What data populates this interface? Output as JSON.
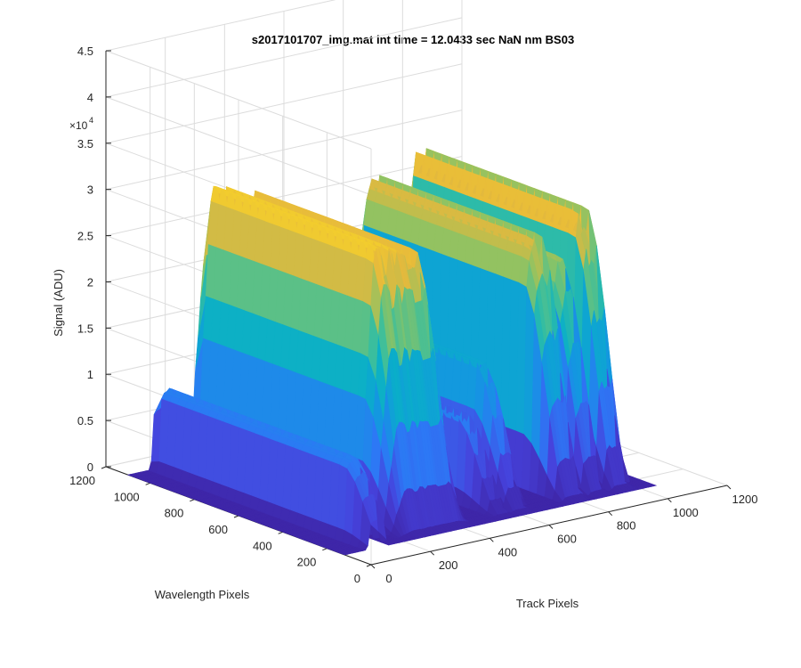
{
  "chart_data": {
    "type": "surface",
    "title": "s2017101707_img.mat int time = 12.0433 sec  NaN nm BS03",
    "xlabel": "Track Pixels",
    "ylabel": "Wavelength Pixels",
    "zlabel": "Signal (ADU)",
    "xlim": [
      0,
      1200
    ],
    "ylim": [
      0,
      1200
    ],
    "zlim": [
      0,
      45000
    ],
    "x_ticks": [
      "0",
      "200",
      "400",
      "600",
      "800",
      "1000",
      "1200"
    ],
    "y_ticks": [
      "0",
      "200",
      "400",
      "600",
      "800",
      "1000",
      "1200"
    ],
    "z_ticks": [
      "0",
      "0.5",
      "1",
      "1.5",
      "2",
      "2.5",
      "3",
      "3.5",
      "4",
      "4.5"
    ],
    "z_multiplier": "×10",
    "z_multiplier_exp": "4",
    "colormap": "parula",
    "grid": true,
    "peaks": [
      {
        "track_center": 110,
        "track_width": 70,
        "plateau_signal": 8500,
        "wavelength_range": [
          100,
          1100
        ]
      },
      {
        "track_center": 330,
        "track_width": 260,
        "plateau_signal": 28000,
        "wavelength_range": [
          200,
          1100
        ]
      },
      {
        "track_center": 560,
        "track_width": 60,
        "plateau_signal": 9000,
        "wavelength_range": [
          200,
          1100
        ]
      },
      {
        "track_center": 620,
        "track_width": 70,
        "plateau_signal": 14000,
        "wavelength_range": [
          200,
          1100
        ]
      },
      {
        "track_center": 800,
        "track_width": 90,
        "plateau_signal": 26000,
        "wavelength_range": [
          200,
          1100
        ]
      },
      {
        "track_center": 880,
        "track_width": 70,
        "plateau_signal": 23000,
        "wavelength_range": [
          200,
          1100
        ]
      },
      {
        "track_center": 960,
        "track_width": 80,
        "plateau_signal": 27000,
        "wavelength_range": [
          200,
          1100
        ]
      }
    ],
    "colors": {
      "low": "#3e26a8",
      "mid": "#10a0d8",
      "high": "#fada24"
    }
  }
}
